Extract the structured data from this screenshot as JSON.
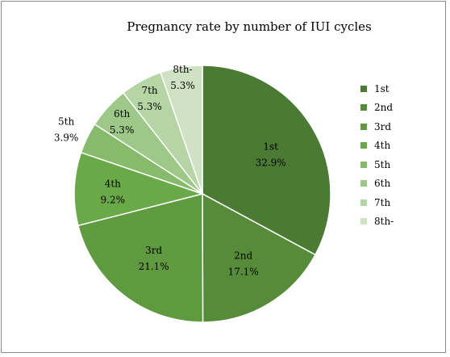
{
  "chart_data": {
    "type": "pie",
    "title": "Pregnancy rate by number of IUI cycles",
    "categories": [
      "1st",
      "2nd",
      "3rd",
      "4th",
      "5th",
      "6th",
      "7th",
      "8th-"
    ],
    "values": [
      32.9,
      17.1,
      21.1,
      9.2,
      3.9,
      5.3,
      5.3,
      5.3
    ],
    "value_labels": [
      "32.9%",
      "17.1%",
      "21.1%",
      "9.2%",
      "3.9%",
      "5.3%",
      "5.3%",
      "5.3%"
    ],
    "colors": [
      "#4a7a33",
      "#558b39",
      "#5f9a40",
      "#6aa947",
      "#85bb6b",
      "#9dc888",
      "#b6d5a5",
      "#cfe2c4"
    ],
    "legend_position": "right",
    "start_angle": "12 o'clock",
    "direction": "clockwise"
  }
}
